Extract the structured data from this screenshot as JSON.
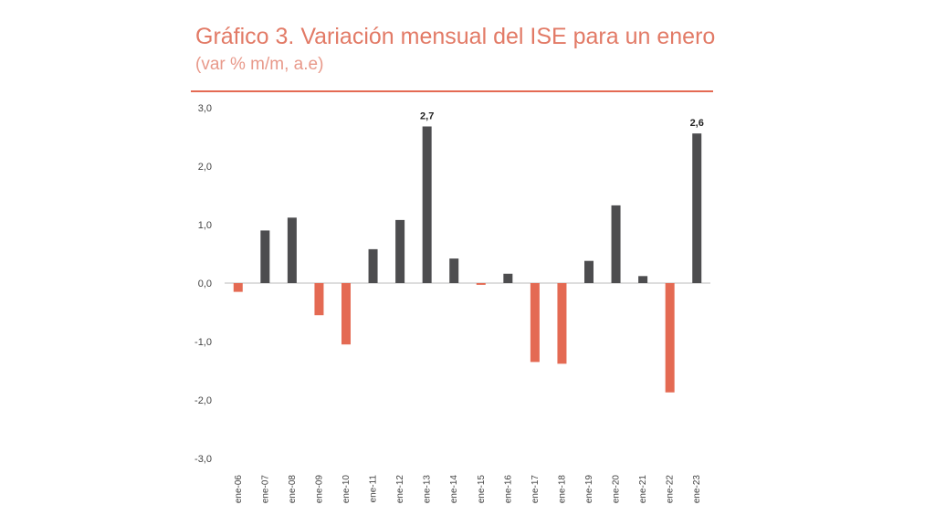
{
  "chart_data": {
    "type": "bar",
    "title": "Gráfico 3. Variación mensual del ISE para un enero",
    "subtitle": "(var % m/m, a.e)",
    "xlabel": "",
    "ylabel": "",
    "ylim": [
      -3.0,
      3.0
    ],
    "yticks": [
      "3,0",
      "2,0",
      "1,0",
      "0,0",
      "-1,0",
      "-2,0",
      "-3,0"
    ],
    "ytick_values": [
      3,
      2,
      1,
      0,
      -1,
      -2,
      -3
    ],
    "grid": false,
    "categories": [
      "ene-06",
      "ene-07",
      "ene-08",
      "ene-09",
      "ene-10",
      "ene-11",
      "ene-12",
      "ene-13",
      "ene-14",
      "ene-15",
      "ene-16",
      "ene-17",
      "ene-18",
      "ene-19",
      "ene-20",
      "ene-21",
      "ene-22",
      "ene-23"
    ],
    "values": [
      -0.15,
      0.9,
      1.12,
      -0.55,
      -1.05,
      0.58,
      1.08,
      2.68,
      0.42,
      -0.03,
      0.16,
      -1.35,
      -1.38,
      0.38,
      1.33,
      0.12,
      -1.87,
      2.56
    ],
    "data_labels": [
      {
        "index": 7,
        "text": "2,7"
      },
      {
        "index": 17,
        "text": "2,6"
      }
    ],
    "colors": {
      "positive": "#4d4d4f",
      "negative": "#e46a53",
      "axis": "#bbbbbb"
    }
  }
}
